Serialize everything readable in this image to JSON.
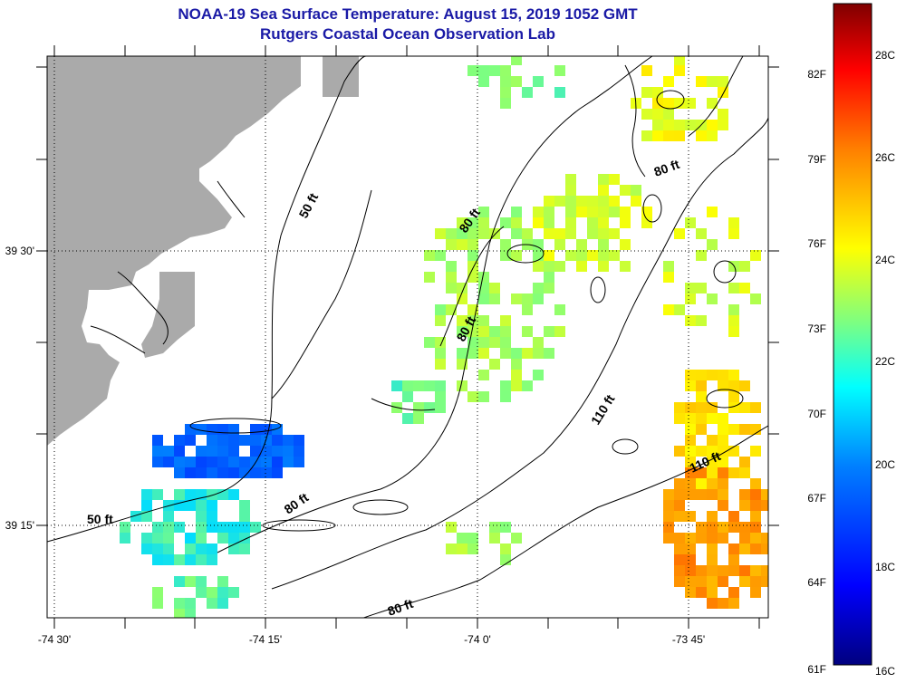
{
  "header": {
    "title_line1": "NOAA-19 Sea Surface Temperature:  August 15, 2019 1052 GMT",
    "title_line2": "Rutgers Coastal Ocean Observation Lab"
  },
  "map": {
    "lat_labels": [
      "39 30'",
      "39 15'"
    ],
    "lon_labels": [
      "-74 30'",
      "-74 15'",
      "-74 0'",
      "-73 45'"
    ],
    "contour_labels": [
      "50 ft",
      "80 ft",
      "80 ft",
      "80 ft",
      "110 ft",
      "80 ft",
      "50 ft",
      "80 ft",
      "110 ft"
    ],
    "land_color": "#aaaaaa",
    "contour_color": "#000000"
  },
  "colorbar": {
    "fahrenheit_labels": [
      "82F",
      "79F",
      "76F",
      "73F",
      "70F",
      "67F",
      "64F",
      "61F"
    ],
    "celsius_labels": [
      "28C",
      "26C",
      "24C",
      "22C",
      "20C",
      "18C",
      "16C"
    ],
    "colors": [
      "#00007f",
      "#0000ff",
      "#007fff",
      "#00ffff",
      "#7fff7f",
      "#ffff00",
      "#ff7f00",
      "#ff0000",
      "#7f0000"
    ]
  }
}
